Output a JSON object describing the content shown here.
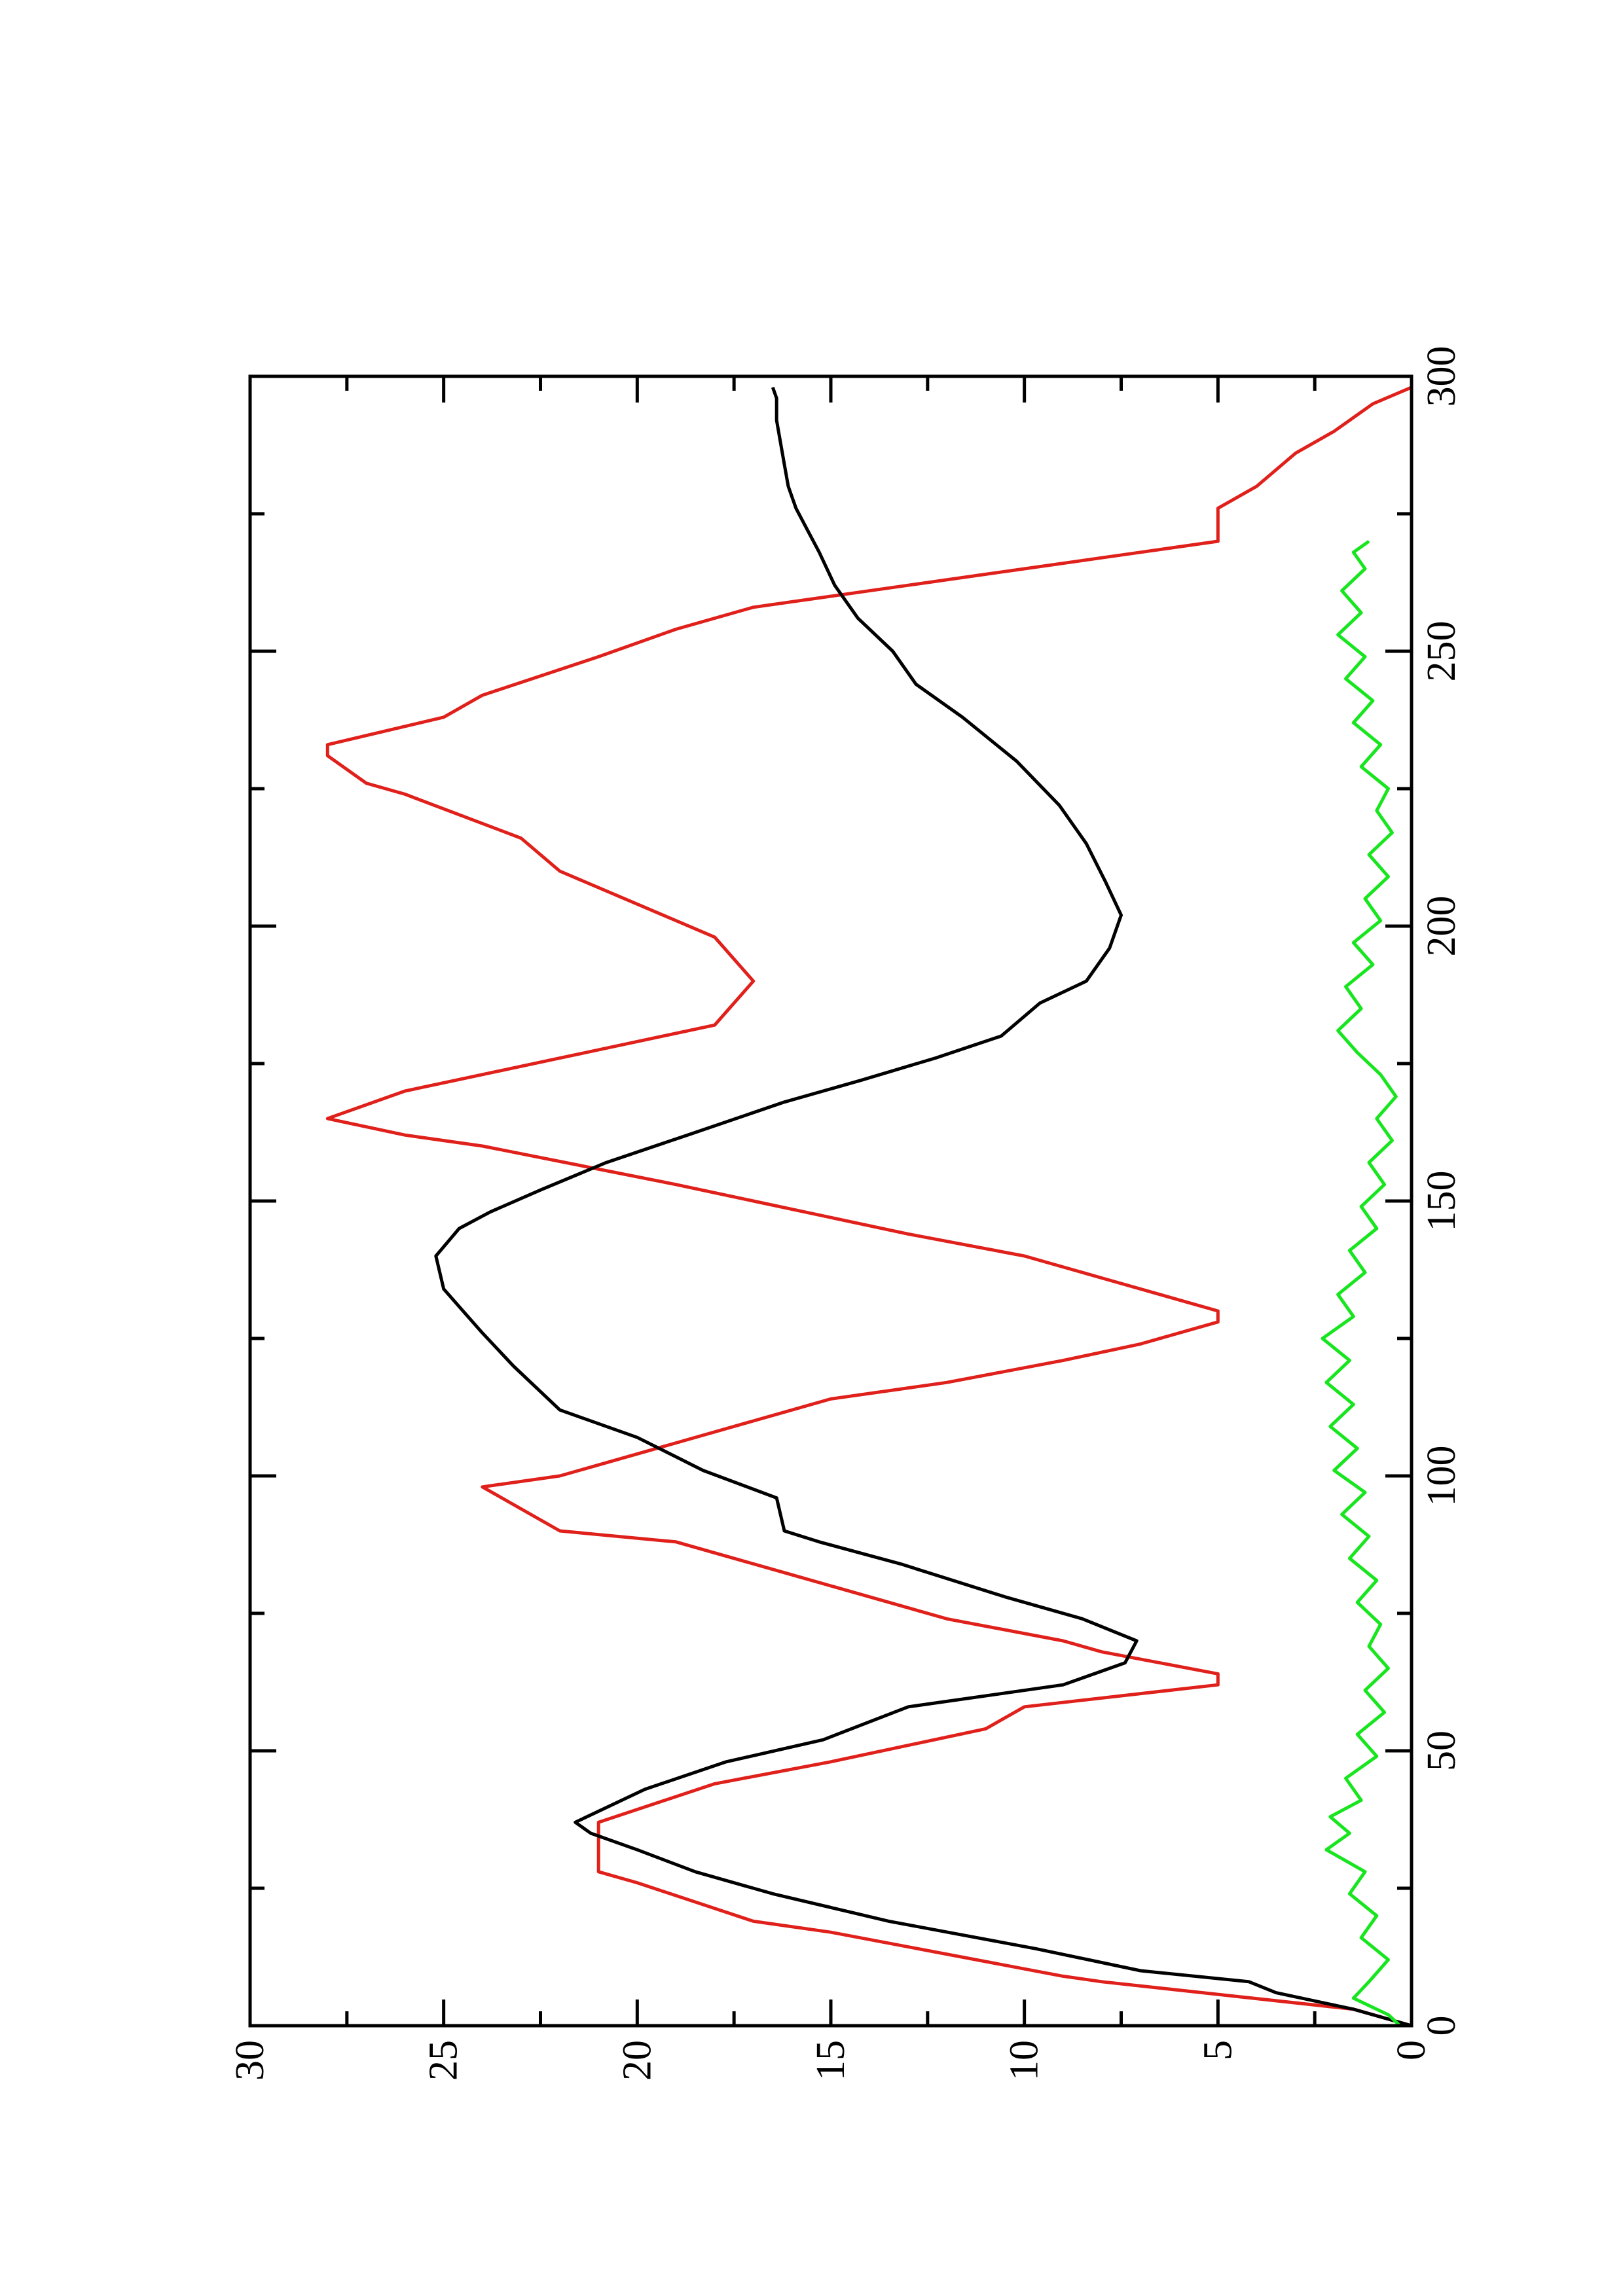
{
  "chart_data": {
    "type": "line",
    "orientation": "rotated-90-ccw",
    "title": "",
    "xlabel": "",
    "ylabel": "",
    "xlim": [
      0,
      300
    ],
    "ylim": [
      0,
      30
    ],
    "x_ticks": [
      0,
      50,
      100,
      150,
      200,
      250,
      300
    ],
    "x_tick_labels": [
      "0",
      "50",
      "100",
      "150",
      "200",
      "250",
      "300"
    ],
    "x_minor_ticks": [
      25,
      75,
      125,
      175,
      225,
      275
    ],
    "y_ticks": [
      0,
      5,
      10,
      15,
      20,
      25,
      30
    ],
    "y_tick_labels": [
      "0",
      "5",
      "10",
      "15",
      "20",
      "25",
      "30"
    ],
    "grid": false,
    "legend": "none",
    "series": [
      {
        "color": "#e0201b",
        "points": [
          [
            0,
            0
          ],
          [
            3,
            1.5
          ],
          [
            8,
            8
          ],
          [
            9,
            9
          ],
          [
            17,
            15
          ],
          [
            19,
            17
          ],
          [
            26,
            20
          ],
          [
            28,
            21
          ],
          [
            37,
            21
          ],
          [
            44,
            18
          ],
          [
            48,
            15
          ],
          [
            54,
            11
          ],
          [
            58,
            10
          ],
          [
            62,
            5
          ],
          [
            64,
            5
          ],
          [
            68,
            8
          ],
          [
            70,
            9
          ],
          [
            74,
            12
          ],
          [
            80,
            15
          ],
          [
            82,
            16
          ],
          [
            88,
            19
          ],
          [
            90,
            22
          ],
          [
            98,
            24
          ],
          [
            100,
            22
          ],
          [
            106,
            19
          ],
          [
            110,
            17
          ],
          [
            114,
            15
          ],
          [
            116,
            13
          ],
          [
            117,
            12
          ],
          [
            121,
            9
          ],
          [
            124,
            7
          ],
          [
            128,
            5
          ],
          [
            130,
            5
          ],
          [
            136,
            8
          ],
          [
            140,
            10
          ],
          [
            144,
            13
          ],
          [
            150,
            17
          ],
          [
            153,
            19
          ],
          [
            160,
            24
          ],
          [
            162,
            26
          ],
          [
            165,
            28
          ],
          [
            170,
            26
          ],
          [
            176,
            22
          ],
          [
            182,
            18
          ],
          [
            190,
            17
          ],
          [
            198,
            18
          ],
          [
            210,
            22
          ],
          [
            216,
            23
          ],
          [
            224,
            26
          ],
          [
            226,
            27
          ],
          [
            231,
            28
          ],
          [
            233,
            28
          ],
          [
            238,
            25
          ],
          [
            242,
            24
          ],
          [
            249,
            21
          ],
          [
            254,
            19
          ],
          [
            258,
            17
          ],
          [
            260,
            15
          ],
          [
            262,
            13
          ],
          [
            264,
            11
          ],
          [
            265,
            10
          ],
          [
            267,
            8
          ],
          [
            268,
            7
          ],
          [
            270,
            5
          ],
          [
            276,
            5
          ],
          [
            280,
            4
          ],
          [
            286,
            3
          ],
          [
            290,
            2
          ],
          [
            295,
            1
          ],
          [
            298,
            0
          ]
        ]
      },
      {
        "color": "#000000",
        "points": [
          [
            0,
            0
          ],
          [
            3,
            1.5
          ],
          [
            6,
            3.5
          ],
          [
            8,
            4.2
          ],
          [
            10,
            7
          ],
          [
            14,
            9.7
          ],
          [
            19,
            13.5
          ],
          [
            24,
            16.5
          ],
          [
            28,
            18.5
          ],
          [
            32,
            20
          ],
          [
            35,
            21.2
          ],
          [
            37,
            21.6
          ],
          [
            43,
            19.8
          ],
          [
            48,
            17.7
          ],
          [
            52,
            15.2
          ],
          [
            58,
            13
          ],
          [
            62,
            9
          ],
          [
            66,
            7.4
          ],
          [
            70,
            7.1
          ],
          [
            74,
            8.5
          ],
          [
            78,
            10.5
          ],
          [
            84,
            13.2
          ],
          [
            88,
            15.3
          ],
          [
            90,
            16.2
          ],
          [
            96,
            16.4
          ],
          [
            101,
            18.3
          ],
          [
            107,
            20
          ],
          [
            112,
            22
          ],
          [
            120,
            23.2
          ],
          [
            126,
            24
          ],
          [
            130,
            24.5
          ],
          [
            134,
            25
          ],
          [
            140,
            25.2
          ],
          [
            145,
            24.6
          ],
          [
            148,
            23.8
          ],
          [
            152,
            22.5
          ],
          [
            157,
            20.8
          ],
          [
            162,
            18.7
          ],
          [
            168,
            16.2
          ],
          [
            172,
            14.2
          ],
          [
            176,
            12.3
          ],
          [
            180,
            10.6
          ],
          [
            186,
            9.6
          ],
          [
            190,
            8.4
          ],
          [
            196,
            7.8
          ],
          [
            202,
            7.5
          ],
          [
            208,
            7.9
          ],
          [
            215,
            8.4
          ],
          [
            222,
            9.1
          ],
          [
            230,
            10.2
          ],
          [
            238,
            11.6
          ],
          [
            244,
            12.8
          ],
          [
            250,
            13.4
          ],
          [
            256,
            14.3
          ],
          [
            262,
            14.9
          ],
          [
            268,
            15.3
          ],
          [
            272,
            15.6
          ],
          [
            276,
            15.9
          ],
          [
            280,
            16.1
          ],
          [
            284,
            16.2
          ],
          [
            288,
            16.3
          ],
          [
            292,
            16.4
          ],
          [
            296,
            16.4
          ],
          [
            298,
            16.5
          ]
        ]
      },
      {
        "color": "#17e51e",
        "points": [
          [
            0,
            0.3
          ],
          [
            2,
            0.6
          ],
          [
            5,
            1.5
          ],
          [
            8,
            1.1
          ],
          [
            12,
            0.6
          ],
          [
            16,
            1.3
          ],
          [
            20,
            0.9
          ],
          [
            24,
            1.6
          ],
          [
            28,
            1.2
          ],
          [
            32,
            2.2
          ],
          [
            35,
            1.6
          ],
          [
            38,
            2.1
          ],
          [
            41,
            1.3
          ],
          [
            45,
            1.7
          ],
          [
            49,
            0.9
          ],
          [
            53,
            1.4
          ],
          [
            57,
            0.7
          ],
          [
            61,
            1.2
          ],
          [
            65,
            0.6
          ],
          [
            69,
            1.1
          ],
          [
            73,
            0.8
          ],
          [
            77,
            1.4
          ],
          [
            81,
            0.9
          ],
          [
            85,
            1.6
          ],
          [
            89,
            1.1
          ],
          [
            93,
            1.8
          ],
          [
            97,
            1.2
          ],
          [
            101,
            2.0
          ],
          [
            105,
            1.4
          ],
          [
            109,
            2.1
          ],
          [
            113,
            1.5
          ],
          [
            117,
            2.2
          ],
          [
            121,
            1.6
          ],
          [
            125,
            2.3
          ],
          [
            129,
            1.5
          ],
          [
            133,
            1.9
          ],
          [
            137,
            1.2
          ],
          [
            141,
            1.6
          ],
          [
            145,
            0.9
          ],
          [
            149,
            1.3
          ],
          [
            153,
            0.7
          ],
          [
            157,
            1.1
          ],
          [
            161,
            0.5
          ],
          [
            165,
            0.9
          ],
          [
            169,
            0.4
          ],
          [
            173,
            0.8
          ],
          [
            177,
            1.4
          ],
          [
            181,
            1.9
          ],
          [
            185,
            1.3
          ],
          [
            189,
            1.7
          ],
          [
            193,
            1.0
          ],
          [
            197,
            1.5
          ],
          [
            201,
            0.8
          ],
          [
            205,
            1.2
          ],
          [
            209,
            0.6
          ],
          [
            213,
            1.1
          ],
          [
            217,
            0.5
          ],
          [
            221,
            0.9
          ],
          [
            225,
            0.6
          ],
          [
            229,
            1.3
          ],
          [
            233,
            0.8
          ],
          [
            237,
            1.5
          ],
          [
            241,
            1.0
          ],
          [
            245,
            1.7
          ],
          [
            249,
            1.2
          ],
          [
            253,
            1.9
          ],
          [
            257,
            1.3
          ],
          [
            261,
            1.8
          ],
          [
            265,
            1.2
          ],
          [
            268,
            1.5
          ],
          [
            270,
            1.1
          ]
        ]
      }
    ]
  }
}
